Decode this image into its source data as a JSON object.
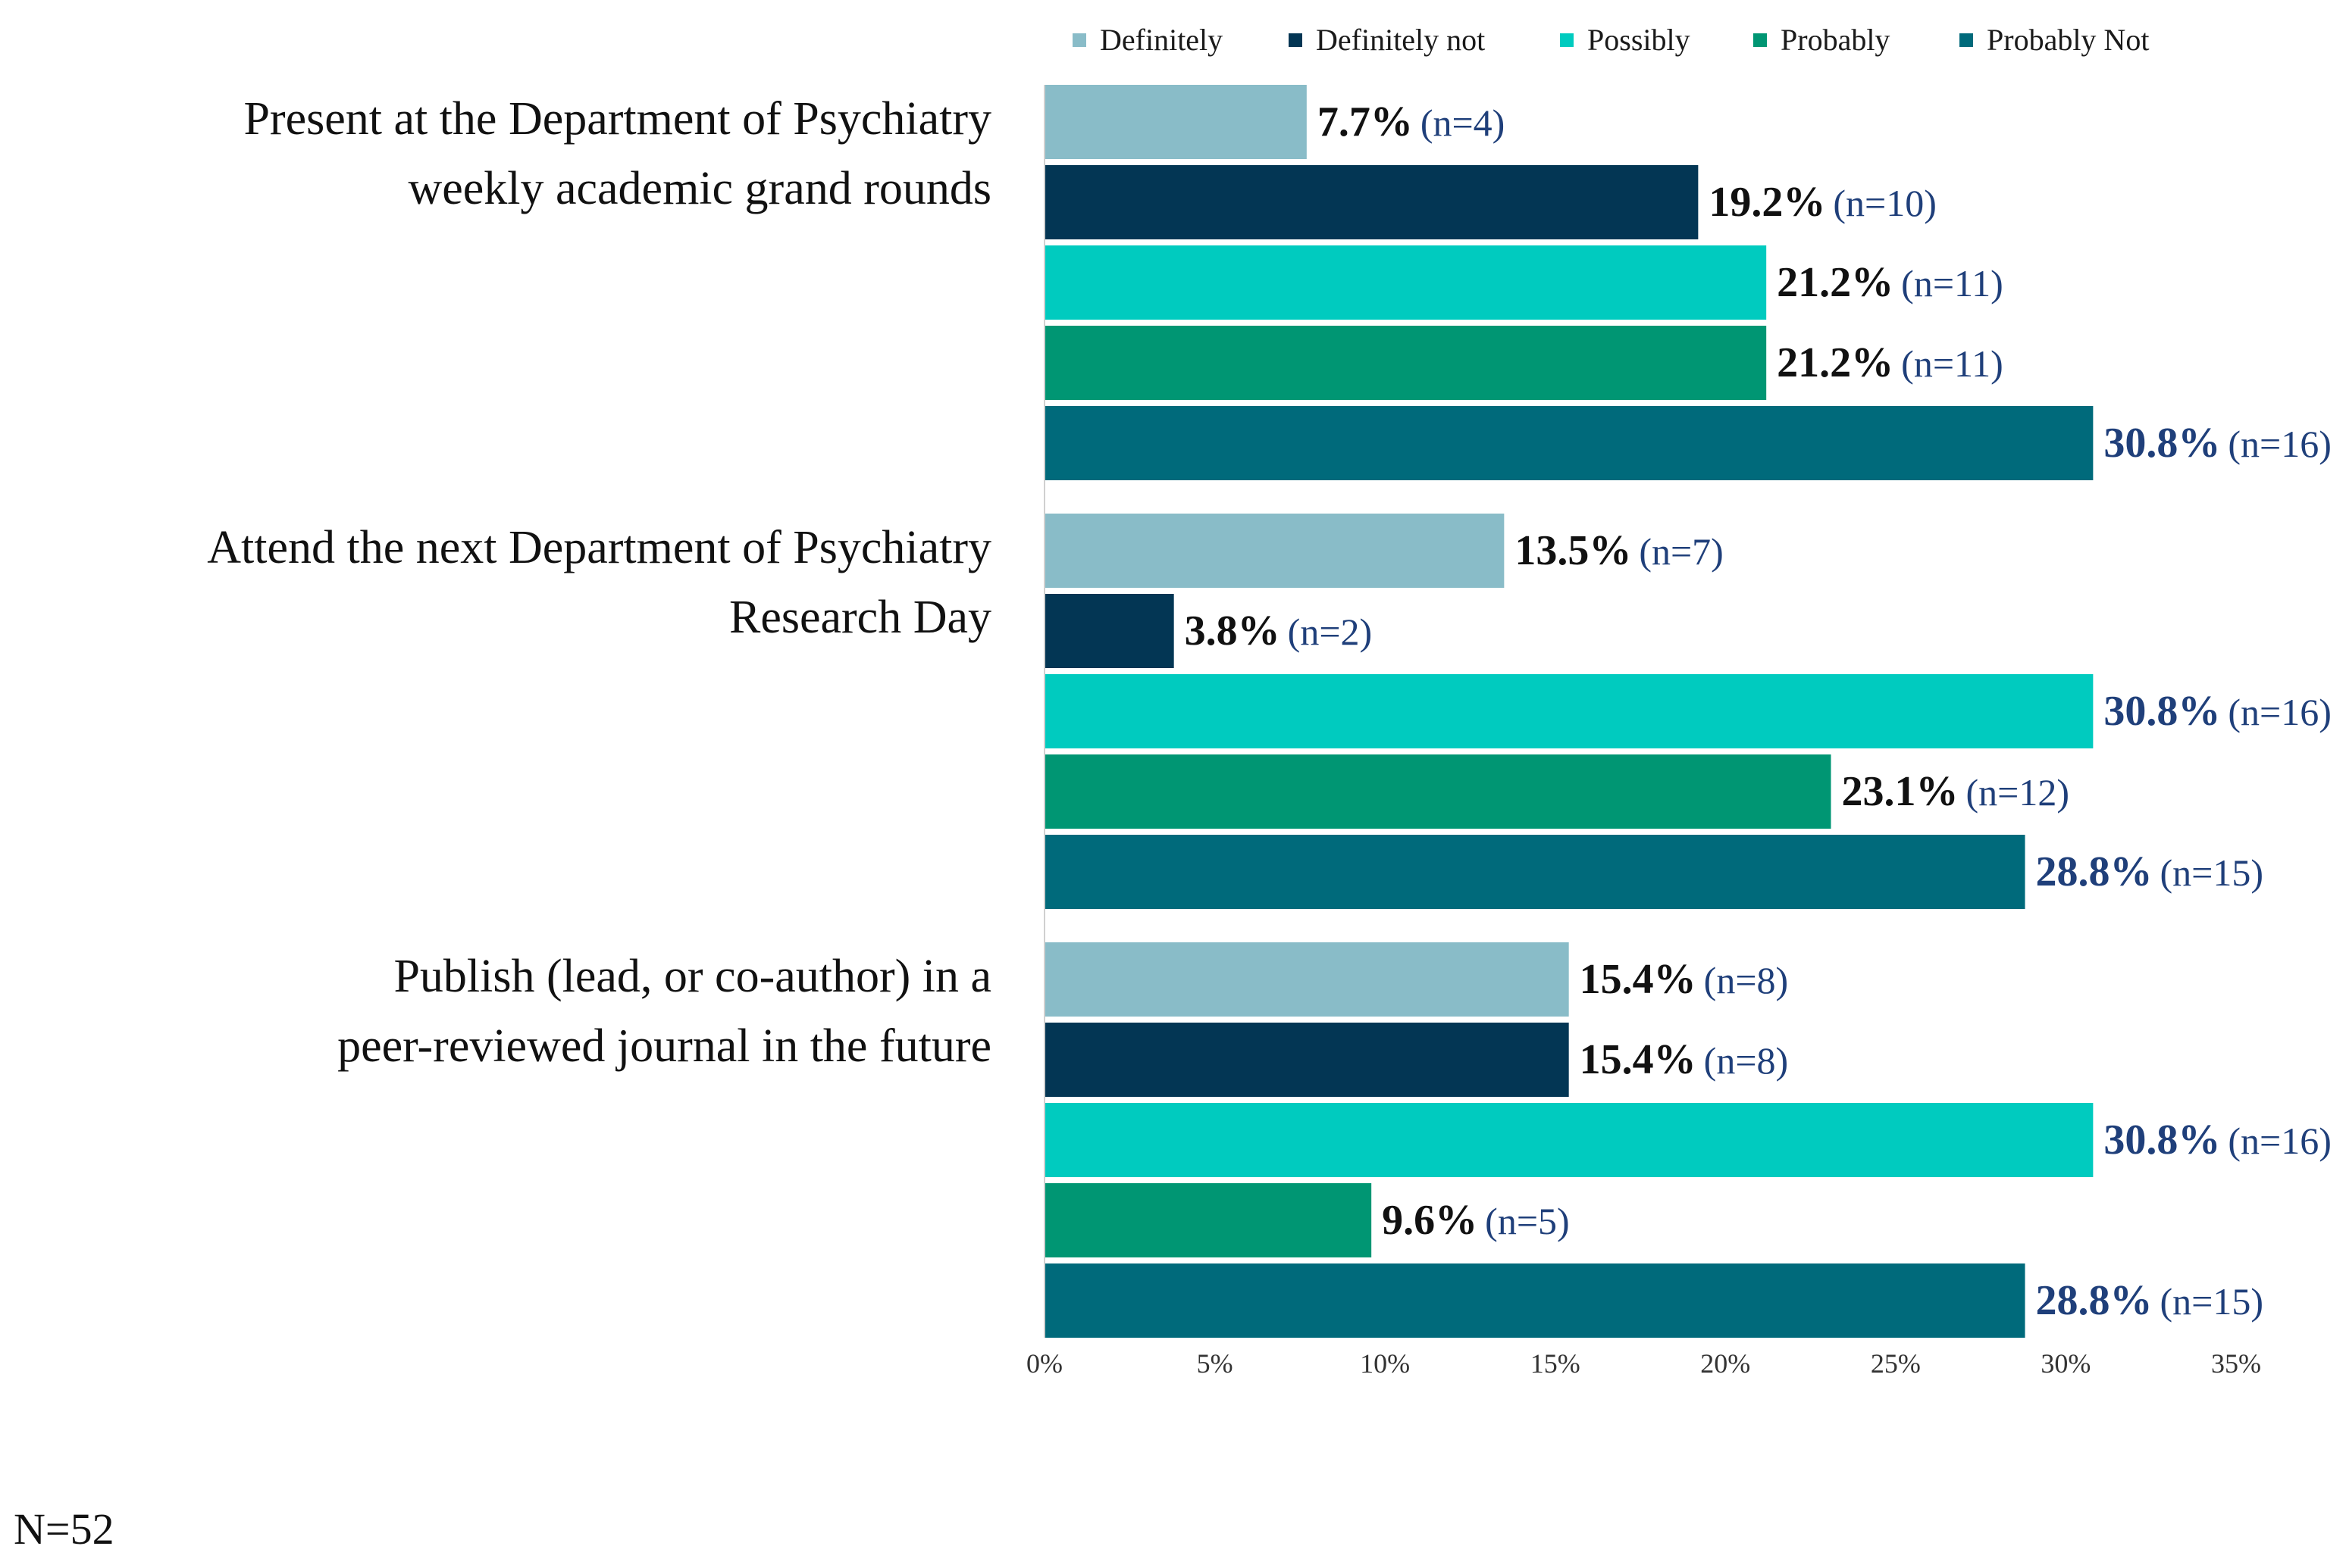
{
  "chart_data": {
    "type": "bar",
    "orientation": "horizontal",
    "title": "",
    "xlabel": "",
    "ylabel": "",
    "xlim": [
      0,
      35
    ],
    "x_ticks": [
      0,
      5,
      10,
      15,
      20,
      25,
      30,
      35
    ],
    "x_tick_labels": [
      "0%",
      "5%",
      "10%",
      "15%",
      "20%",
      "25%",
      "30%",
      "35%"
    ],
    "legend_position": "top",
    "categories": [
      [
        "Present at the Department of Psychiatry",
        "weekly academic grand rounds"
      ],
      [
        "Attend the next Department of Psychiatry",
        "Research Day"
      ],
      [
        "Publish (lead, or co-author) in a",
        "peer-reviewed journal in the future"
      ]
    ],
    "series": [
      {
        "name": "Definitely",
        "color": "#89bcc8",
        "values": [
          7.7,
          13.5,
          15.4
        ],
        "pct_labels": [
          "7.7%",
          "13.5%",
          "15.4%"
        ],
        "n_labels": [
          "(n=4)",
          "(n=7)",
          "(n=8)"
        ]
      },
      {
        "name": "Definitely not",
        "color": "#033654",
        "values": [
          19.2,
          3.8,
          15.4
        ],
        "pct_labels": [
          "19.2%",
          "3.8%",
          "15.4%"
        ],
        "n_labels": [
          "(n=10)",
          "(n=2)",
          "(n=8)"
        ]
      },
      {
        "name": "Possibly",
        "color": "#00cbbf",
        "values": [
          21.2,
          30.8,
          30.8
        ],
        "pct_labels": [
          "21.2%",
          "30.8%",
          "30.8%"
        ],
        "n_labels": [
          "(n=11)",
          "(n=16)",
          "(n=16)"
        ]
      },
      {
        "name": "Probably",
        "color": "#009673",
        "values": [
          21.2,
          23.1,
          9.6
        ],
        "pct_labels": [
          "21.2%",
          "23.1%",
          "9.6%"
        ],
        "n_labels": [
          "(n=11)",
          "(n=12)",
          "(n=5)"
        ]
      },
      {
        "name": "Probably Not",
        "color": "#006a7b",
        "values": [
          30.8,
          28.8,
          28.8
        ],
        "pct_labels": [
          "30.8%",
          "28.8%",
          "28.8%"
        ],
        "n_labels": [
          "(n=16)",
          "(n=15)",
          "(n=15)"
        ]
      }
    ],
    "highlight_color": "#1f3f7a",
    "footnote": "N=52"
  }
}
